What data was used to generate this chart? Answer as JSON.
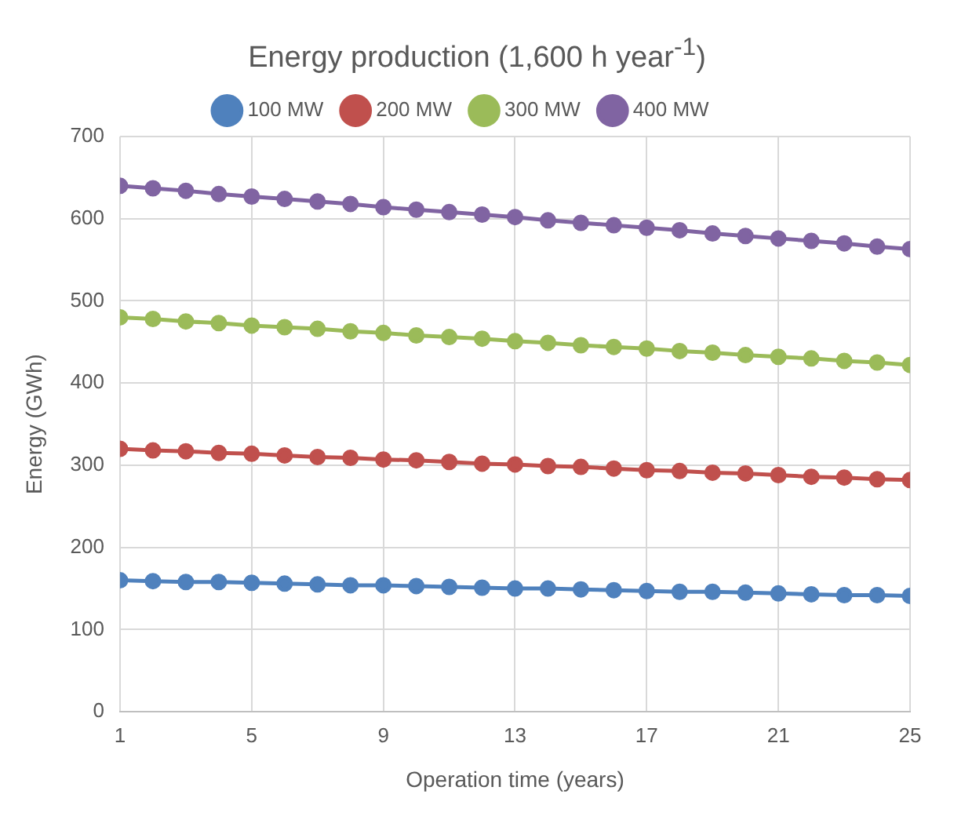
{
  "chart_data": {
    "type": "line",
    "title": "Energy production (1,600 h year$^{-1}$)",
    "xlabel": "Operation time (years)",
    "ylabel": "Energy (GWh)",
    "x": [
      1,
      2,
      3,
      4,
      5,
      6,
      7,
      8,
      9,
      10,
      11,
      12,
      13,
      14,
      15,
      16,
      17,
      18,
      19,
      20,
      21,
      22,
      23,
      24,
      25
    ],
    "xlim": [
      1,
      25
    ],
    "xticks": [
      1,
      5,
      9,
      13,
      17,
      21,
      25
    ],
    "ylim": [
      0,
      700
    ],
    "yticks": [
      0,
      100,
      200,
      300,
      400,
      500,
      600,
      700
    ],
    "grid": true,
    "legend": "top",
    "marker": "circle",
    "line_style": "solid",
    "series": [
      {
        "name": "100 MW",
        "color": "#4f81bd",
        "values": [
          160,
          159,
          158,
          158,
          157,
          156,
          155,
          154,
          154,
          153,
          152,
          151,
          150,
          150,
          149,
          148,
          147,
          146,
          146,
          145,
          144,
          143,
          142,
          142,
          141
        ]
      },
      {
        "name": "200 MW",
        "color": "#c0504d",
        "values": [
          320,
          318,
          317,
          315,
          314,
          312,
          310,
          309,
          307,
          306,
          304,
          302,
          301,
          299,
          298,
          296,
          294,
          293,
          291,
          290,
          288,
          286,
          285,
          283,
          282
        ]
      },
      {
        "name": "300 MW",
        "color": "#9bbb59",
        "values": [
          480,
          478,
          475,
          473,
          470,
          468,
          466,
          463,
          461,
          458,
          456,
          454,
          451,
          449,
          446,
          444,
          442,
          439,
          437,
          434,
          432,
          430,
          427,
          425,
          422
        ]
      },
      {
        "name": "400 MW",
        "color": "#8064a2",
        "values": [
          640,
          637,
          634,
          630,
          627,
          624,
          621,
          618,
          614,
          611,
          608,
          605,
          602,
          598,
          595,
          592,
          589,
          586,
          582,
          579,
          576,
          573,
          570,
          566,
          563
        ]
      }
    ]
  }
}
